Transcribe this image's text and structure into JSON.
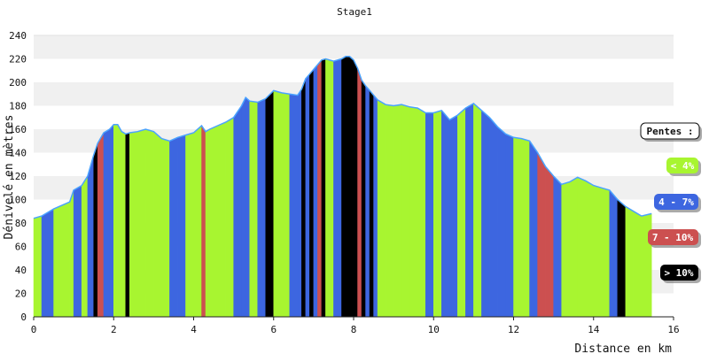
{
  "chart_data": {
    "type": "area",
    "title": "Stage1",
    "xlabel": "Distance en km",
    "ylabel": "Dénivelé en mètres",
    "xlim": [
      0,
      16
    ],
    "ylim": [
      0,
      240
    ],
    "x_ticks": [
      0,
      2,
      4,
      6,
      8,
      10,
      12,
      14,
      16
    ],
    "y_ticks": [
      0,
      20,
      40,
      60,
      80,
      100,
      120,
      140,
      160,
      180,
      200,
      220,
      240
    ],
    "grid": "horizontal bands",
    "series": [
      {
        "x": [
          0,
          0.2,
          0.5,
          0.9,
          1.0,
          1.2,
          1.35,
          1.5,
          1.6,
          1.75,
          1.9,
          2.0,
          2.1,
          2.2,
          2.3,
          2.4,
          2.6,
          2.8,
          3.0,
          3.2,
          3.4,
          3.6,
          3.8,
          4.0,
          4.2,
          4.3,
          4.4,
          4.6,
          4.8,
          5.0,
          5.2,
          5.3,
          5.4,
          5.6,
          5.8,
          6.0,
          6.1,
          6.2,
          6.4,
          6.6,
          6.7,
          6.8,
          6.9,
          7.0,
          7.1,
          7.2,
          7.3,
          7.5,
          7.7,
          7.8,
          7.9,
          8.0,
          8.1,
          8.2,
          8.3,
          8.4,
          8.5,
          8.6,
          8.8,
          9.0,
          9.2,
          9.4,
          9.6,
          9.8,
          10.0,
          10.2,
          10.4,
          10.6,
          10.8,
          11.0,
          11.2,
          11.4,
          11.6,
          11.8,
          12.0,
          12.2,
          12.4,
          12.6,
          12.8,
          13.0,
          13.2,
          13.4,
          13.6,
          13.8,
          14.0,
          14.2,
          14.4,
          14.6,
          14.8,
          15.0,
          15.2,
          15.45
        ],
        "y": [
          84,
          86,
          92,
          98,
          108,
          112,
          120,
          138,
          148,
          157,
          160,
          164,
          164,
          158,
          156,
          157,
          158,
          160,
          158,
          152,
          150,
          153,
          155,
          157,
          163,
          158,
          160,
          163,
          166,
          170,
          180,
          187,
          184,
          183,
          186,
          193,
          192,
          191,
          190,
          189,
          194,
          203,
          207,
          211,
          215,
          219,
          220,
          218,
          220,
          222,
          222,
          219,
          212,
          202,
          197,
          193,
          189,
          185,
          181,
          180,
          181,
          179,
          178,
          174,
          174,
          176,
          168,
          172,
          178,
          182,
          176,
          170,
          162,
          156,
          153,
          152,
          150,
          140,
          128,
          120,
          113,
          115,
          119,
          116,
          112,
          110,
          108,
          100,
          94,
          90,
          86,
          88
        ],
        "gradient_category": [
          "lt4",
          "4-7",
          "lt4",
          "lt4",
          "4-7",
          "lt4",
          "4-7",
          ">10",
          "7-10",
          "4-7",
          "4-7",
          "lt4",
          "lt4",
          "lt4",
          ">10",
          "lt4",
          "lt4",
          "lt4",
          "lt4",
          "lt4",
          "4-7",
          "4-7",
          "lt4",
          "lt4",
          "7-10",
          "lt4",
          "lt4",
          "lt4",
          "lt4",
          "4-7",
          "4-7",
          "4-7",
          "lt4",
          "4-7",
          ">10",
          "lt4",
          "lt4",
          "lt4",
          "4-7",
          "4-7",
          ">10",
          "4-7",
          ">10",
          "4-7",
          "7-10",
          ">10",
          "lt4",
          "4-7",
          ">10",
          ">10",
          ">10",
          ">10",
          "7-10",
          ">10",
          "4-7",
          ">10",
          "4-7",
          "lt4",
          "lt4",
          "lt4",
          "lt4",
          "lt4",
          "lt4",
          "4-7",
          "lt4",
          "4-7",
          "4-7",
          "lt4",
          "4-7",
          "lt4",
          "4-7",
          "4-7",
          "4-7",
          "4-7",
          "lt4",
          "lt4",
          "4-7",
          "7-10",
          "7-10",
          "4-7",
          "lt4",
          "lt4",
          "lt4",
          "lt4",
          "lt4",
          "lt4",
          "4-7",
          ">10",
          "lt4",
          "lt4",
          "lt4",
          "lt4"
        ]
      }
    ],
    "legend": {
      "placement": "right",
      "title": "Pentes :",
      "items": [
        {
          "key": "lt4",
          "label": "< 4%",
          "color": "#a8f530",
          "text_color": "#ffffff"
        },
        {
          "key": "4-7",
          "label": "4 - 7%",
          "color": "#3d66e0",
          "text_color": "#ffffff"
        },
        {
          "key": "7-10",
          "label": "7 - 10%",
          "color": "#cc5050",
          "text_color": "#ffffff"
        },
        {
          "key": ">10",
          "label": "> 10%",
          "color": "#000000",
          "text_color": "#ffffff"
        }
      ]
    },
    "colors": {
      "outline": "#4aa3ff",
      "band_light": "#f0f0f0",
      "band_white": "#ffffff"
    }
  }
}
